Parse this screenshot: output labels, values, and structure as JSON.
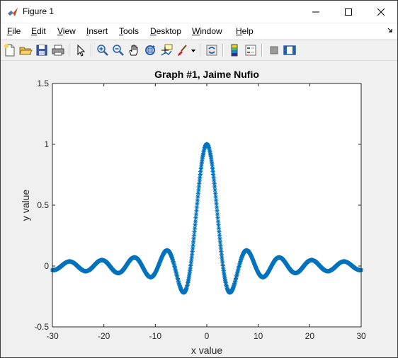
{
  "window": {
    "title": "Figure 1",
    "minimize_icon": "minimize-icon",
    "maximize_icon": "maximize-icon",
    "close_icon": "close-icon"
  },
  "menu": {
    "items": [
      "File",
      "Edit",
      "View",
      "Insert",
      "Tools",
      "Desktop",
      "Window",
      "Help"
    ]
  },
  "toolbar": {
    "icons": [
      "new-figure-icon",
      "open-file-icon",
      "save-icon",
      "print-icon",
      "edit-plot-arrow-icon",
      "zoom-in-icon",
      "zoom-out-icon",
      "pan-hand-icon",
      "rotate-3d-icon",
      "data-cursor-icon",
      "brush-icon",
      "link-plot-icon",
      "colorbar-icon",
      "legend-icon",
      "hide-plot-tools-icon",
      "show-plot-tools-icon"
    ]
  },
  "colors": {
    "series": "#0072bd",
    "axes_bg": "#ffffff",
    "figure_bg": "#f0f0f0"
  },
  "chart_data": {
    "type": "scatter",
    "title": "Graph #1, Jaime Nufio",
    "xlabel": "x value",
    "ylabel": "y value",
    "xlim": [
      -30,
      30
    ],
    "ylim": [
      -0.5,
      1.5
    ],
    "xticks": [
      "-30",
      "-20",
      "-10",
      "0",
      "10",
      "20",
      "30"
    ],
    "yticks": [
      "-0.5",
      "0",
      "0.5",
      "1",
      "1.5"
    ],
    "marker": "*",
    "series": [
      {
        "function": "y = sin(x)/x",
        "x_range": [
          -30,
          30
        ],
        "color": "#0072bd"
      }
    ]
  }
}
